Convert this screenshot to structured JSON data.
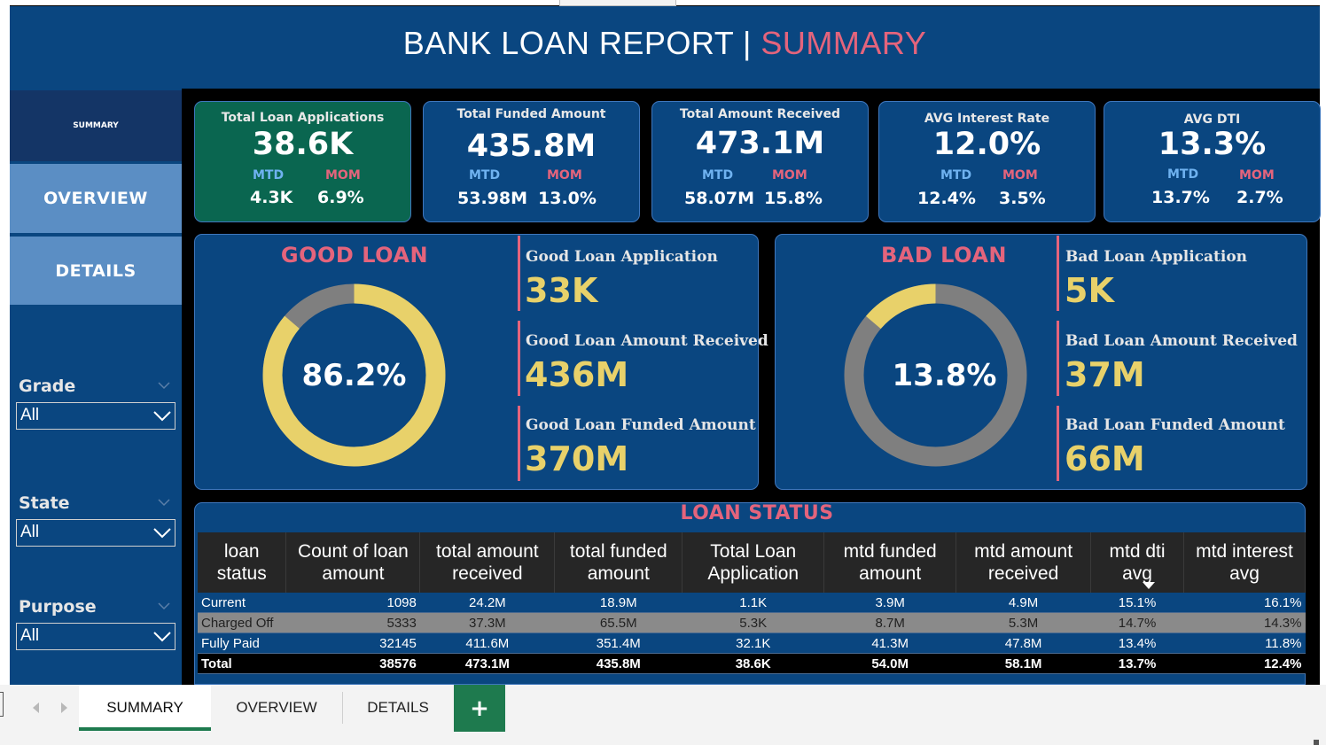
{
  "header": {
    "title_main": "BANK LOAN REPORT | ",
    "title_accent": "SUMMARY"
  },
  "sidebar": {
    "nav": {
      "summary": "SUMMARY",
      "overview": "OVERVIEW",
      "details": "DETAILS"
    },
    "filters": [
      {
        "label": "Grade",
        "value": "All"
      },
      {
        "label": "State",
        "value": "All"
      },
      {
        "label": "Purpose",
        "value": "All"
      }
    ]
  },
  "kpis": [
    {
      "title": "Total Loan Applications",
      "value": "38.6K",
      "mtd_label": "MTD",
      "mom_label": "MOM",
      "mtd": "4.3K",
      "mom": "6.9%",
      "bg": "#0a6650"
    },
    {
      "title": "Total Funded Amount",
      "value": "435.8M",
      "mtd_label": "MTD",
      "mom_label": "MOM",
      "mtd": "53.98M",
      "mom": "13.0%",
      "bg": "#0a4680"
    },
    {
      "title": "Total  Amount Received",
      "value": "473.1M",
      "mtd_label": "MTD",
      "mom_label": "MOM",
      "mtd": "58.07M",
      "mom": "15.8%",
      "bg": "#0a4680"
    },
    {
      "title": "AVG Interest Rate",
      "value": "12.0%",
      "mtd_label": "MTD",
      "mom_label": "MOM",
      "mtd": "12.4%",
      "mom": "3.5%",
      "bg": "#0a4680"
    },
    {
      "title": "AVG DTI",
      "value": "13.3%",
      "mtd_label": "MTD",
      "mom_label": "MOM",
      "mtd": "13.7%",
      "mom": "2.7%",
      "bg": "#0a4680"
    }
  ],
  "good_loan": {
    "title": "GOOD LOAN",
    "percent_label": "86.2%",
    "percent": 86.2,
    "metrics": [
      {
        "label": "Good Loan Application",
        "value": "33K"
      },
      {
        "label": "Good Loan Amount Received",
        "value": "436M"
      },
      {
        "label": "Good Loan Funded Amount",
        "value": "370M"
      }
    ]
  },
  "bad_loan": {
    "title": "BAD LOAN",
    "percent_label": "13.8%",
    "percent": 13.8,
    "metrics": [
      {
        "label": "Bad Loan Application",
        "value": "5K"
      },
      {
        "label": "Bad Loan Amount Received",
        "value": "37M"
      },
      {
        "label": "Bad Loan Funded Amount",
        "value": "66M"
      }
    ]
  },
  "colors": {
    "donut_fill": "#e8d16a",
    "donut_track": "#7f7f7f",
    "accent": "#e4647c"
  },
  "loan_status": {
    "title": "LOAN STATUS",
    "columns": [
      "loan status",
      "Count of loan amount",
      "total amount received",
      "total funded amount",
      "Total Loan Application",
      "mtd funded amount",
      "mtd amount received",
      "mtd dti avg",
      "mtd interest avg"
    ],
    "rows": [
      [
        "Current",
        "1098",
        "24.2M",
        "18.9M",
        "1.1K",
        "3.9M",
        "4.9M",
        "15.1%",
        "16.1%"
      ],
      [
        "Charged Off",
        "5333",
        "37.3M",
        "65.5M",
        "5.3K",
        "8.7M",
        "5.3M",
        "14.7%",
        "14.3%"
      ],
      [
        "Fully Paid",
        "32145",
        "411.6M",
        "351.4M",
        "32.1K",
        "41.3M",
        "47.8M",
        "13.4%",
        "11.8%"
      ],
      [
        "Total",
        "38576",
        "473.1M",
        "435.8M",
        "38.6K",
        "54.0M",
        "58.1M",
        "13.7%",
        "12.4%"
      ]
    ]
  },
  "tabs": {
    "summary": "SUMMARY",
    "overview": "OVERVIEW",
    "details": "DETAILS",
    "add": "+"
  }
}
